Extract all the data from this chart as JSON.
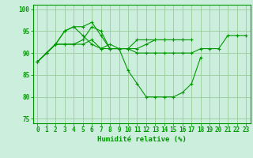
{
  "xlabel": "Humidité relative (%)",
  "background_color": "#cceedd",
  "grid_color": "#99cc99",
  "line_color": "#009900",
  "xlim_min": -0.5,
  "xlim_max": 23.5,
  "ylim_min": 74,
  "ylim_max": 101,
  "yticks": [
    75,
    80,
    85,
    90,
    95,
    100
  ],
  "xticks": [
    0,
    1,
    2,
    3,
    4,
    5,
    6,
    7,
    8,
    9,
    10,
    11,
    12,
    13,
    14,
    15,
    16,
    17,
    18,
    19,
    20,
    21,
    22,
    23
  ],
  "series": [
    [
      88,
      90,
      92,
      95,
      96,
      96,
      97,
      94,
      91,
      91,
      91,
      90,
      90,
      90,
      90,
      90,
      90,
      90,
      91,
      91,
      91,
      94,
      94,
      94
    ],
    [
      88,
      90,
      92,
      92,
      92,
      93,
      96,
      95,
      91,
      91,
      86,
      83,
      80,
      80,
      80,
      80,
      81,
      83,
      89,
      null,
      null,
      null,
      null,
      null
    ],
    [
      88,
      90,
      92,
      95,
      96,
      94,
      92,
      91,
      92,
      91,
      91,
      93,
      93,
      93,
      93,
      93,
      93,
      93,
      null,
      null,
      null,
      null,
      null,
      null
    ],
    [
      88,
      90,
      92,
      92,
      92,
      92,
      93,
      91,
      91,
      91,
      91,
      91,
      92,
      93,
      93,
      93,
      93,
      null,
      null,
      null,
      null,
      null,
      null,
      null
    ]
  ],
  "tick_fontsize": 5.5,
  "xlabel_fontsize": 6.5,
  "linewidth": 0.8,
  "markersize": 2.5
}
